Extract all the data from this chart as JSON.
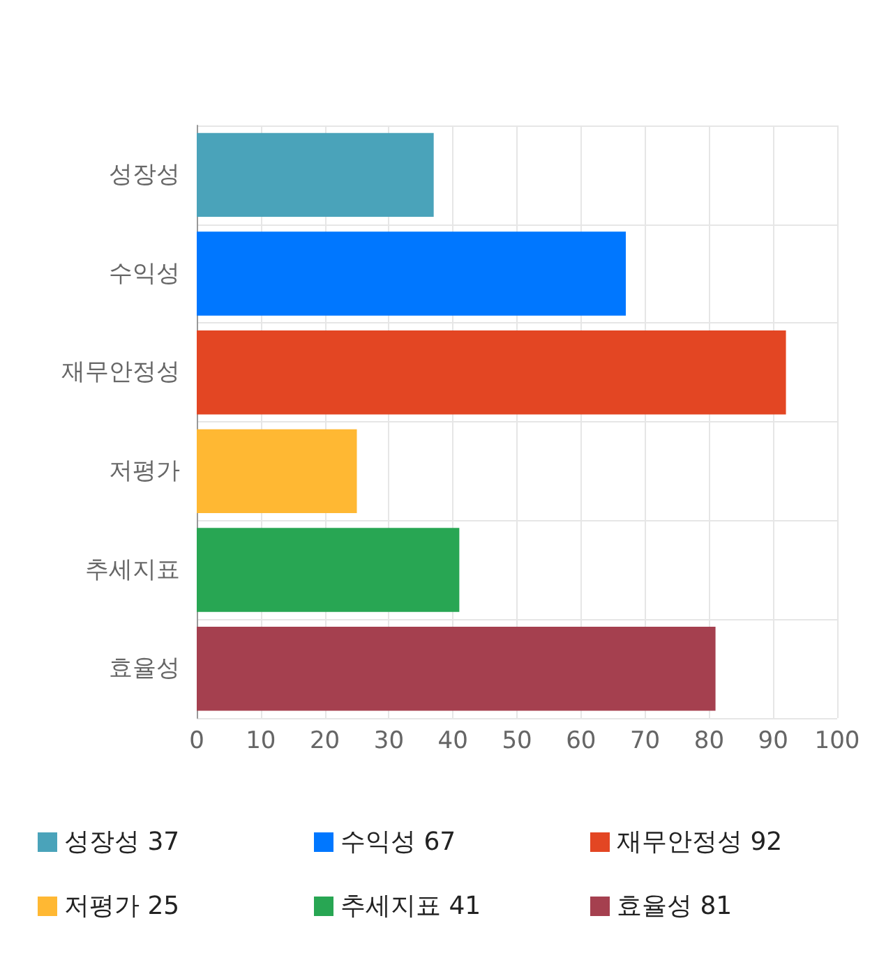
{
  "chart_data": {
    "type": "bar",
    "orientation": "horizontal",
    "categories": [
      "성장성",
      "수익성",
      "재무안정성",
      "저평가",
      "추세지표",
      "효율성"
    ],
    "series": [
      {
        "name": "성장성 37",
        "color": "#4aa3ba",
        "values": [
          37,
          null,
          null,
          null,
          null,
          null
        ]
      },
      {
        "name": "수익성 67",
        "color": "#0077ff",
        "values": [
          null,
          67,
          null,
          null,
          null,
          null
        ]
      },
      {
        "name": "재무안정성 92",
        "color": "#e34623",
        "values": [
          null,
          null,
          92,
          null,
          null,
          null
        ]
      },
      {
        "name": "저평가 25",
        "color": "#ffb833",
        "values": [
          null,
          null,
          null,
          25,
          null,
          null
        ]
      },
      {
        "name": "추세지표 41",
        "color": "#28a653",
        "values": [
          null,
          null,
          null,
          null,
          41,
          null
        ]
      },
      {
        "name": "효율성 81",
        "color": "#a5404f",
        "values": [
          null,
          null,
          null,
          null,
          null,
          81
        ]
      }
    ],
    "xlim": [
      0,
      100
    ],
    "xticks": [
      0,
      10,
      20,
      30,
      40,
      50,
      60,
      70,
      80,
      90,
      100
    ],
    "grid": true,
    "legend": "bottom"
  }
}
